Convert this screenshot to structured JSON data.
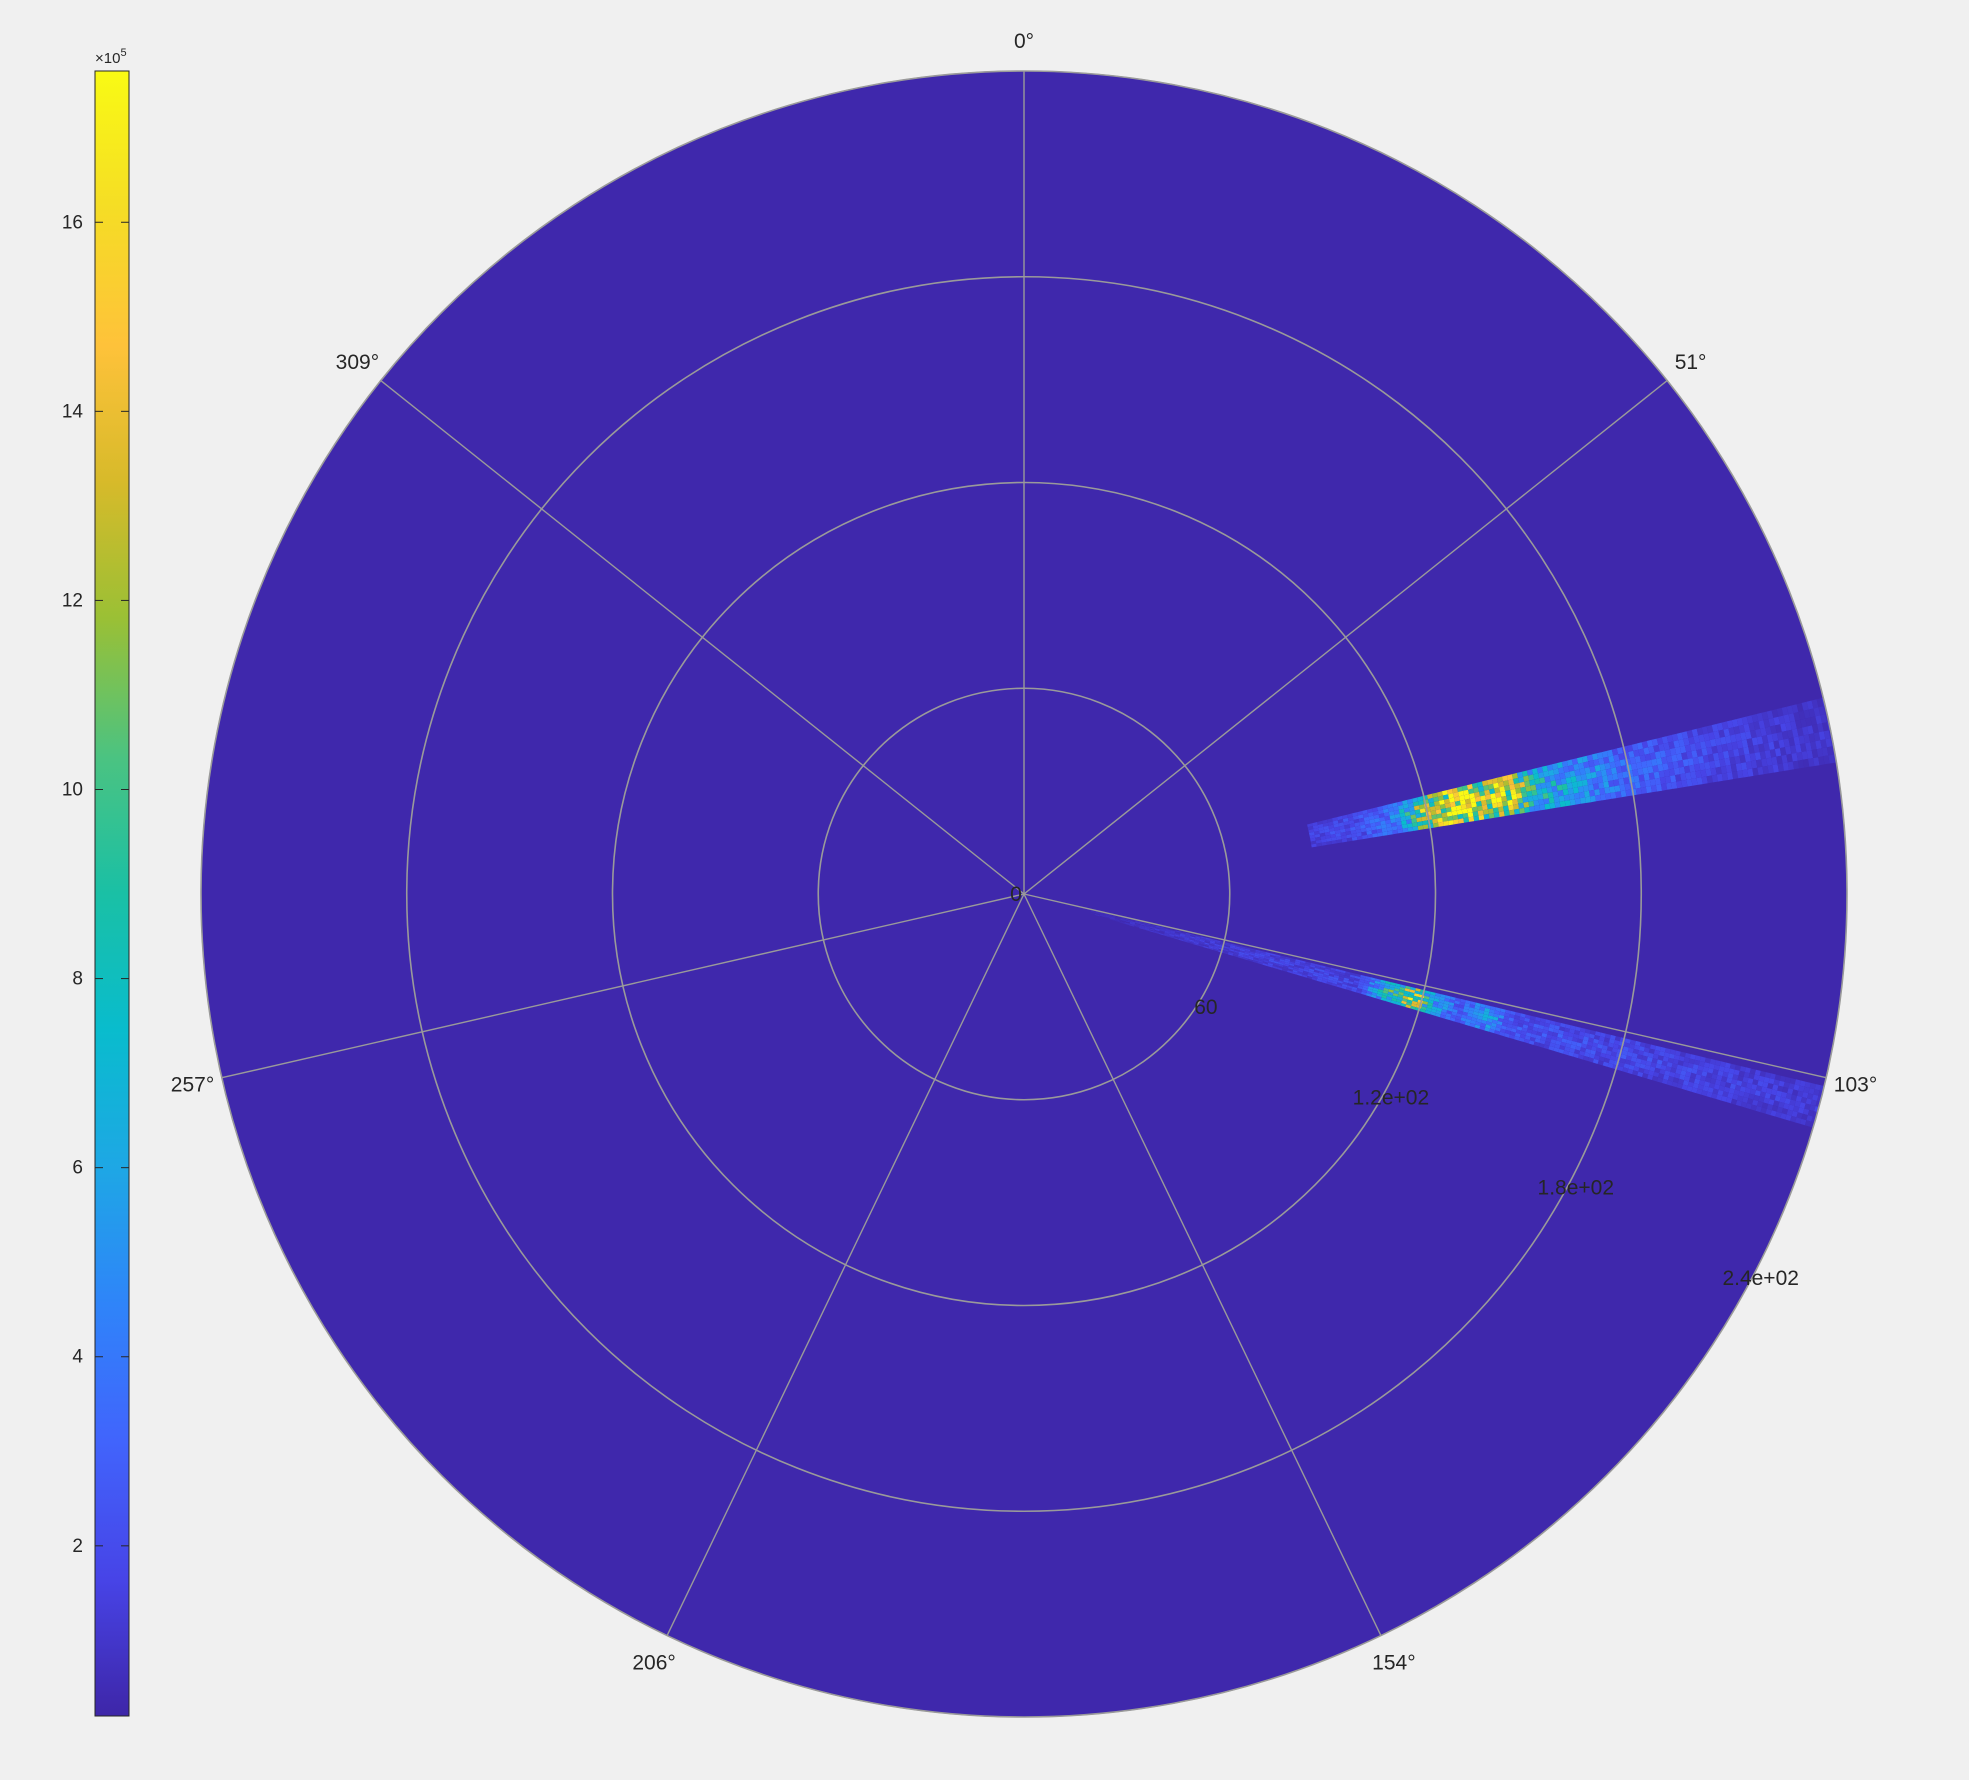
{
  "chart_data": {
    "type": "heatmap",
    "projection": "polar",
    "theta_direction": "clockwise",
    "theta_zero": "top",
    "theta_ticks": [
      "0°",
      "51°",
      "103°",
      "154°",
      "206°",
      "257°",
      "309°"
    ],
    "theta_tick_values": [
      0,
      51.4,
      102.9,
      154.3,
      205.7,
      257.1,
      308.6
    ],
    "r_ticks": [
      "0",
      "60",
      "1.2e+02",
      "1.8e+02",
      "2.4e+02"
    ],
    "r_tick_values": [
      0,
      60,
      120,
      180,
      240
    ],
    "rlim": [
      0,
      240
    ],
    "grid": true,
    "background_value": 0.3,
    "colorbar": {
      "ticks": [
        "2",
        "4",
        "6",
        "8",
        "10",
        "12",
        "14",
        "16"
      ],
      "tick_values": [
        2,
        4,
        6,
        8,
        10,
        12,
        14,
        16
      ],
      "clim": [
        0.2,
        17.6
      ],
      "exponent_label": "×10",
      "exponent_power": "5",
      "colormap": [
        "#3e26a8",
        "#4744e7",
        "#4164fc",
        "#2f84f9",
        "#1ea7e5",
        "#09bccd",
        "#1ac0a5",
        "#4bc381",
        "#9ac035",
        "#d7ba2a",
        "#fec23a",
        "#f5dd25",
        "#f9fa14"
      ]
    },
    "beams": [
      {
        "center_theta": 78.5,
        "width": 4.6,
        "r_range": [
          85,
          240
        ],
        "profile": [
          {
            "r": 85,
            "v": 1.5
          },
          {
            "r": 100,
            "v": 2.5
          },
          {
            "r": 110,
            "v": 4.5
          },
          {
            "r": 118,
            "v": 12.0
          },
          {
            "r": 125,
            "v": 15.5
          },
          {
            "r": 132,
            "v": 17.0
          },
          {
            "r": 137,
            "v": 13.0
          },
          {
            "r": 142,
            "v": 16.0
          },
          {
            "r": 150,
            "v": 9.0
          },
          {
            "r": 165,
            "v": 5.5
          },
          {
            "r": 180,
            "v": 3.5
          },
          {
            "r": 200,
            "v": 2.0
          },
          {
            "r": 240,
            "v": 1.0
          }
        ]
      },
      {
        "center_theta": 105.0,
        "width": 3.0,
        "r_range": [
          20,
          240
        ],
        "profile": [
          {
            "r": 20,
            "v": 0.6
          },
          {
            "r": 50,
            "v": 1.3
          },
          {
            "r": 100,
            "v": 2.0
          },
          {
            "r": 105,
            "v": 5.0
          },
          {
            "r": 112,
            "v": 10.0
          },
          {
            "r": 118,
            "v": 14.0
          },
          {
            "r": 122,
            "v": 7.0
          },
          {
            "r": 130,
            "v": 3.0
          },
          {
            "r": 140,
            "v": 6.0
          },
          {
            "r": 145,
            "v": 2.5
          },
          {
            "r": 180,
            "v": 2.0
          },
          {
            "r": 240,
            "v": 1.3
          }
        ]
      }
    ]
  }
}
